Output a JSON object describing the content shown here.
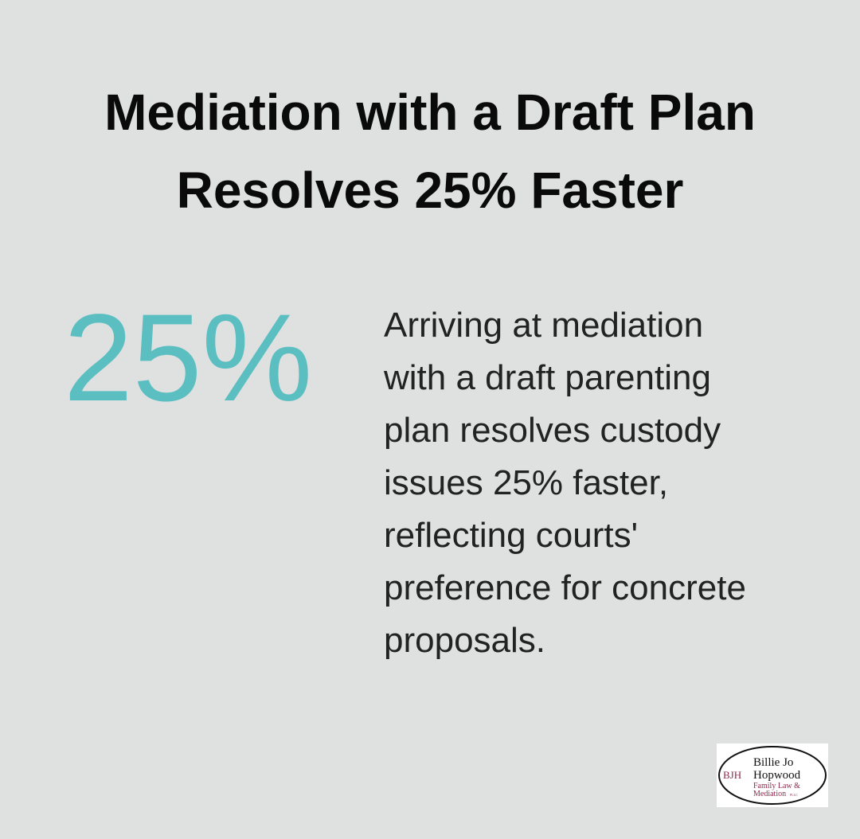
{
  "title_lines": [
    "Mediation with a Draft Plan",
    "Resolves 25% Faster"
  ],
  "stat": {
    "value": "25%",
    "description_lines": [
      "Arriving at mediation",
      "with a draft parenting",
      "plan resolves custody",
      "issues 25% faster,",
      "reflecting courts'",
      "preference for concrete",
      "proposals."
    ]
  },
  "logo": {
    "initials": "BJH",
    "name_lines": [
      "Billie Jo",
      "Hopwood"
    ],
    "subtitle_lines": [
      "Family Law &",
      "Mediation"
    ],
    "suffix": "PLLC"
  }
}
